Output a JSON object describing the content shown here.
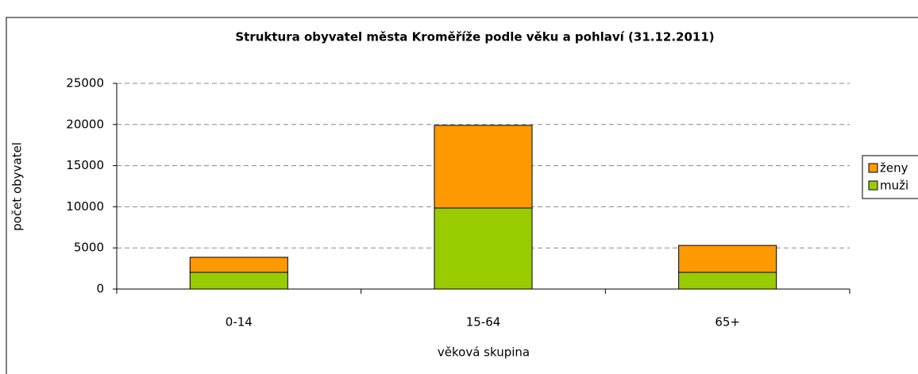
{
  "chart_data": {
    "type": "stacked_bar",
    "title": "Struktura obyvatel města Kroměříže podle věku a pohlaví (31.12.2011)",
    "x_label": "věková skupina",
    "y_label": "počet obyvatel",
    "categories": [
      "0-14",
      "15-64",
      "65+"
    ],
    "series": [
      {
        "name": "muži",
        "color": "#99cc00",
        "values": [
          2030,
          9850,
          2030
        ]
      },
      {
        "name": "ženy",
        "color": "#ff9900",
        "values": [
          1830,
          10050,
          3270
        ]
      }
    ],
    "ylim": [
      0,
      25000
    ],
    "yticks": [
      0,
      5000,
      10000,
      15000,
      20000,
      25000
    ],
    "grid": true,
    "legend": "right"
  }
}
